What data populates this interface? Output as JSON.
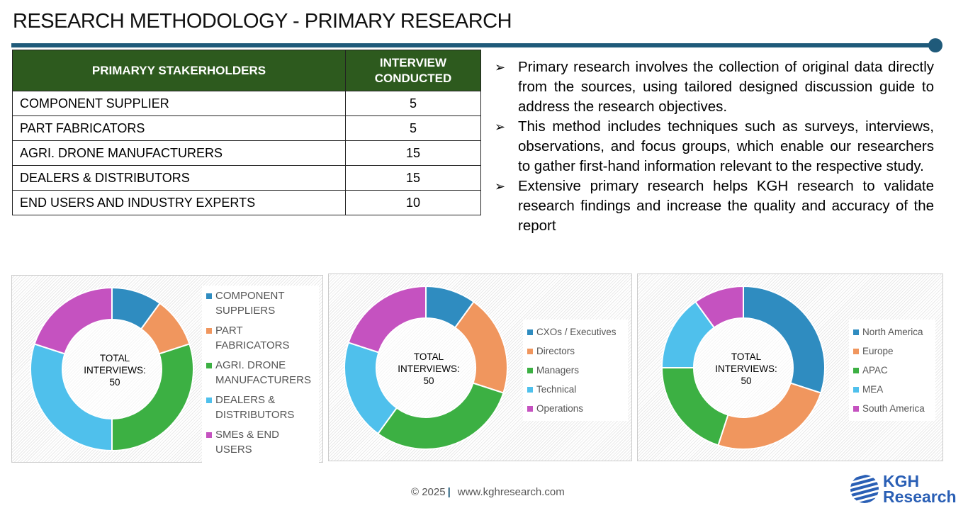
{
  "title": "RESEARCH METHODOLOGY - PRIMARY RESEARCH",
  "table": {
    "headers": [
      "PRIMARYY STAKERHOLDERS",
      "INTERVIEW CONDUCTED"
    ],
    "rows": [
      [
        "COMPONENT SUPPLIER",
        "5"
      ],
      [
        "PART FABRICATORS",
        "5"
      ],
      [
        "AGRI. DRONE MANUFACTURERS",
        "15"
      ],
      [
        "DEALERS & DISTRIBUTORS",
        "15"
      ],
      [
        "END USERS AND INDUSTRY EXPERTS",
        "10"
      ]
    ]
  },
  "bullets": [
    "Primary research involves the collection of original data directly from the sources, using tailored designed discussion guide to address the research objectives.",
    "This method includes techniques such as surveys, interviews, observations, and focus groups, which enable our researchers to gather first-hand information relevant to the respective study.",
    "Extensive primary research helps KGH research to validate research findings and increase the quality and accuracy of the report"
  ],
  "chart_data": [
    {
      "type": "pie",
      "center_label": [
        "TOTAL",
        "INTERVIEWS:",
        "50"
      ],
      "categories": [
        "COMPONENT SUPPLIERS",
        "PART FABRICATORS",
        "AGRI. DRONE MANUFACTURERS",
        "DEALERS & DISTRIBUTORS",
        "SMEs & END USERS"
      ],
      "values": [
        10,
        10,
        30,
        30,
        20
      ],
      "colors": [
        "#2f8cc0",
        "#f0965e",
        "#3cb043",
        "#4fc0ec",
        "#c552c0"
      ],
      "legend": "right"
    },
    {
      "type": "pie",
      "center_label": [
        "TOTAL",
        "INTERVIEWS:",
        "50"
      ],
      "categories": [
        "CXOs / Executives",
        "Directors",
        "Managers",
        "Technical",
        "Operations"
      ],
      "values": [
        10,
        20,
        30,
        20,
        20
      ],
      "colors": [
        "#2f8cc0",
        "#f0965e",
        "#3cb043",
        "#4fc0ec",
        "#c552c0"
      ],
      "legend": "right"
    },
    {
      "type": "pie",
      "center_label": [
        "TOTAL",
        "INTERVIEWS:",
        "50"
      ],
      "categories": [
        "North America",
        "Europe",
        "APAC",
        "MEA",
        "South America"
      ],
      "values": [
        30,
        25,
        20,
        15,
        10
      ],
      "colors": [
        "#2f8cc0",
        "#f0965e",
        "#3cb043",
        "#4fc0ec",
        "#c552c0"
      ],
      "legend": "right"
    }
  ],
  "footer": {
    "copyright": "© 2025",
    "url": "www.kghresearch.com"
  },
  "logo": {
    "line1": "KGH",
    "line2": "Research"
  }
}
